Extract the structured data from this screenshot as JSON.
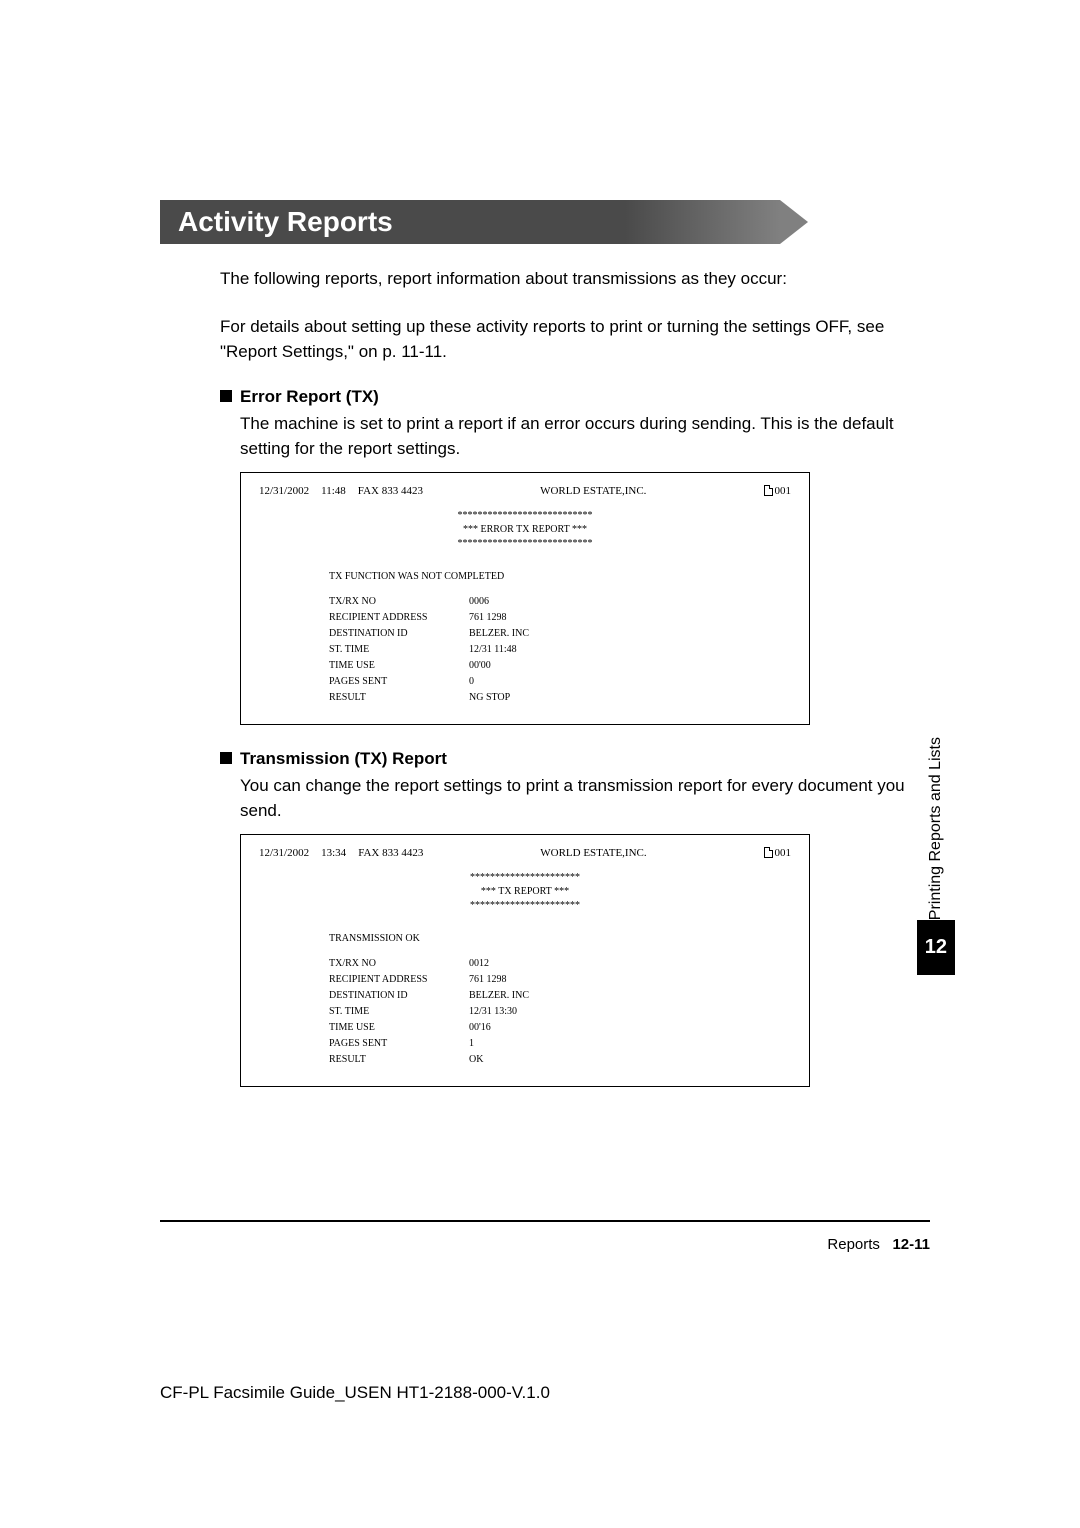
{
  "section_title": "Activity Reports",
  "intro1": "The following reports, report information about transmissions as they occur:",
  "intro2": "For details about setting up these activity reports to print or turning the settings OFF, see \"Report Settings,\" on p. 11-11.",
  "error_report": {
    "title": "Error Report (TX)",
    "desc": "The machine is set to print a report if an error occurs during sending. This is the default setting for the report settings.",
    "header": {
      "date": "12/31/2002",
      "time": "11:48",
      "fax": "FAX 833 4423",
      "company": "WORLD ESTATE,INC.",
      "pageno": "001"
    },
    "title_stars_top": "***************************",
    "title_line": "***     ERROR TX REPORT     ***",
    "title_stars_bot": "***************************",
    "status": "TX FUNCTION WAS NOT COMPLETED",
    "fields": [
      {
        "label": "TX/RX NO",
        "value": "0006"
      },
      {
        "label": "RECIPIENT ADDRESS",
        "value": "761 1298"
      },
      {
        "label": "DESTINATION ID",
        "value": "BELZER. INC"
      },
      {
        "label": "ST. TIME",
        "value": "12/31 11:48"
      },
      {
        "label": "TIME USE",
        "value": "00'00"
      },
      {
        "label": "PAGES SENT",
        "value": "  0"
      },
      {
        "label": "RESULT",
        "value": "NG                    STOP"
      }
    ]
  },
  "tx_report": {
    "title": "Transmission (TX) Report",
    "desc": "You can change the report settings to print a transmission report for every document you send.",
    "header": {
      "date": "12/31/2002",
      "time": "13:34",
      "fax": "FAX 833 4423",
      "company": "WORLD ESTATE,INC.",
      "pageno": "001"
    },
    "title_stars_top": "**********************",
    "title_line": "***     TX REPORT     ***",
    "title_stars_bot": "**********************",
    "status": "TRANSMISSION OK",
    "fields": [
      {
        "label": "TX/RX NO",
        "value": "0012"
      },
      {
        "label": "RECIPIENT ADDRESS",
        "value": "761 1298"
      },
      {
        "label": "DESTINATION ID",
        "value": "BELZER. INC"
      },
      {
        "label": "ST. TIME",
        "value": "12/31 13:30"
      },
      {
        "label": "TIME USE",
        "value": "00'16"
      },
      {
        "label": "PAGES SENT",
        "value": "  1"
      },
      {
        "label": "RESULT",
        "value": "OK"
      }
    ]
  },
  "side": {
    "label": "Printing Reports and Lists",
    "number": "12"
  },
  "footer": {
    "label": "Reports",
    "page": "12-11"
  },
  "doc_id": "CF-PL Facsimile Guide_USEN HT1-2188-000-V.1.0"
}
